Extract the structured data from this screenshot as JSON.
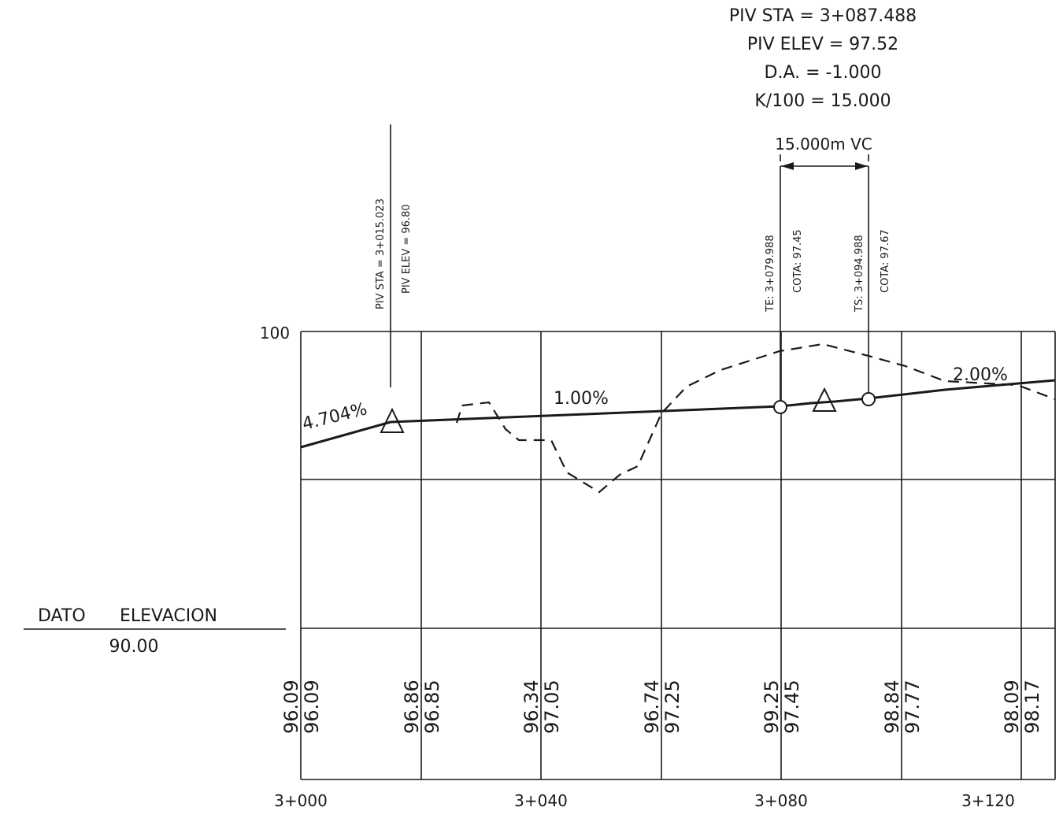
{
  "piv2": {
    "sta": "PIV STA = 3+087.488",
    "elev": "PIV ELEV = 97.52",
    "da": "D.A. = -1.000",
    "k": "K/100 = 15.000"
  },
  "piv1": {
    "sta": "PIV STA = 3+015.023",
    "elev": "PIV ELEV = 96.80"
  },
  "vertical_curve": {
    "length": "15.000m VC",
    "te": "TE: 3+079.988",
    "te_cota": "COTA: 97.45",
    "ts": "TS: 3+094.988",
    "ts_cota": "COTA: 97.67"
  },
  "grades": {
    "g1": "4.704%",
    "g2": "1.00%",
    "g3": "2.00%"
  },
  "axis": {
    "y_top": "100",
    "datum_label_1": "DATO",
    "datum_label_2": "ELEVACION",
    "datum_value": "90.00"
  },
  "chart_data": {
    "type": "line",
    "stations": [
      "3+000",
      "3+020",
      "3+040",
      "3+060",
      "3+080",
      "3+100",
      "3+120"
    ],
    "station_labels": [
      "3+000",
      "3+040",
      "3+080",
      "3+120"
    ],
    "ground_elev": [
      "96.09",
      "96.86",
      "96.34",
      "96.74",
      "99.25",
      "98.84",
      "98.09"
    ],
    "grade_elev": [
      "96.09",
      "96.85",
      "97.05",
      "97.25",
      "97.45",
      "97.77",
      "98.17"
    ],
    "ground_values": [
      96.09,
      96.86,
      96.34,
      96.74,
      99.25,
      98.84,
      98.09
    ],
    "grade_values": [
      96.09,
      96.85,
      97.05,
      97.25,
      97.45,
      97.77,
      98.17
    ],
    "ylim": [
      90,
      100
    ]
  }
}
